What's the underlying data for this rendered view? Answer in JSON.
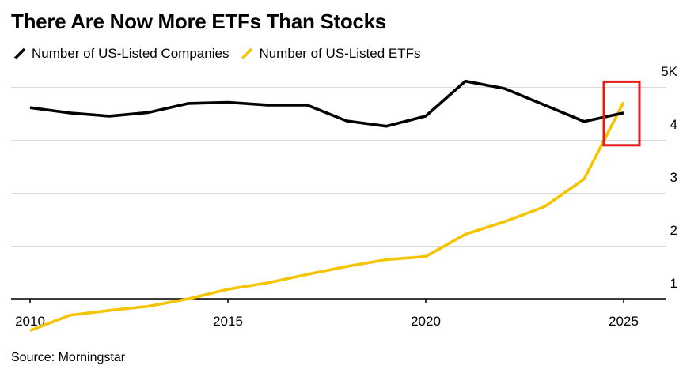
{
  "title": "There Are Now More ETFs Than Stocks",
  "source": "Source: Morningstar",
  "chart_data": {
    "type": "line",
    "title": "There Are Now More ETFs Than Stocks",
    "xlabel": "",
    "ylabel": "",
    "x": [
      2010,
      2011,
      2012,
      2013,
      2014,
      2015,
      2016,
      2017,
      2018,
      2019,
      2020,
      2021,
      2022,
      2023,
      2024,
      2025
    ],
    "series": [
      {
        "name": "Number of US-Listed Companies",
        "color": "#000000",
        "values": [
          4.31,
          4.21,
          4.15,
          4.22,
          4.39,
          4.41,
          4.36,
          4.36,
          4.06,
          3.96,
          4.15,
          4.81,
          4.67,
          4.36,
          4.05,
          4.21
        ]
      },
      {
        "name": "Number of US-Listed ETFs",
        "color": "#f5c400",
        "values": [
          0.1,
          0.39,
          0.48,
          0.56,
          0.7,
          0.88,
          1.0,
          1.16,
          1.31,
          1.44,
          1.5,
          1.92,
          2.16,
          2.44,
          2.96,
          4.41
        ]
      }
    ],
    "xticks": [
      2010,
      2015,
      2020,
      2025
    ],
    "xtick_labels": [
      "2010",
      "2015",
      "2020",
      "2025"
    ],
    "yticks": [
      1,
      2,
      3,
      4,
      5
    ],
    "ytick_labels": [
      "1",
      "2",
      "3",
      "4",
      "5K"
    ],
    "xlim": [
      2010,
      2026
    ],
    "ylim": [
      0,
      5.4
    ],
    "grid": true,
    "legend_position": "top-left",
    "highlight_box": {
      "x_range": [
        2024.5,
        2025.4
      ],
      "y_range": [
        3.6,
        4.8
      ],
      "color": "#e41b1b"
    }
  }
}
